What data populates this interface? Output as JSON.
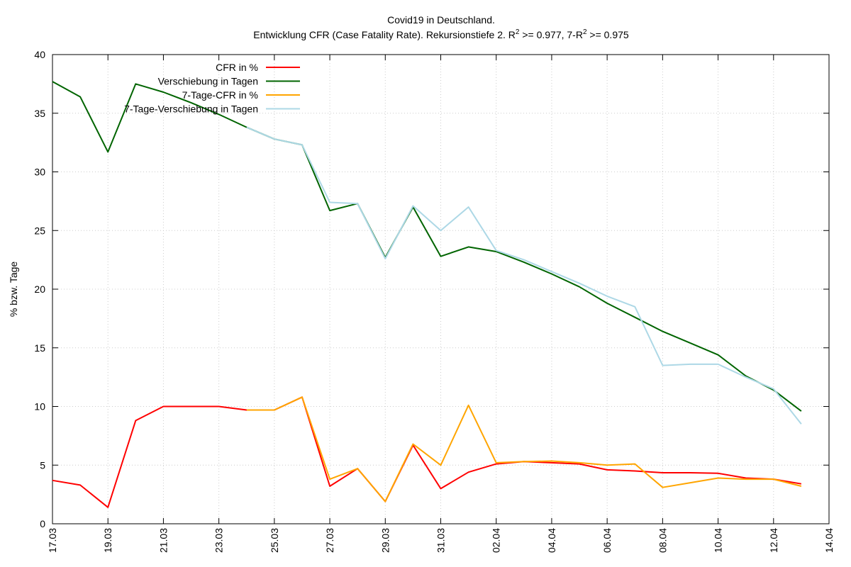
{
  "chart_data": {
    "type": "line",
    "title_line1": "Covid19 in Deutschland.",
    "title_line2_prefix": "Entwicklung CFR (Case Fatality Rate). Rekursionstiefe 2. R",
    "title_sup1": "2",
    "title_line2_mid": " >= 0.977, 7-R",
    "title_sup2": "2",
    "title_line2_suffix": " >= 0.975",
    "ylabel": "% bzw. Tage",
    "xlabel": "",
    "ylim": [
      0,
      40
    ],
    "yticks": [
      0,
      5,
      10,
      15,
      20,
      25,
      30,
      35,
      40
    ],
    "x_dates": [
      "17.03",
      "18.03",
      "19.03",
      "20.03",
      "21.03",
      "22.03",
      "23.03",
      "24.03",
      "25.03",
      "26.03",
      "27.03",
      "28.03",
      "29.03",
      "30.03",
      "31.03",
      "01.04",
      "02.04",
      "03.04",
      "04.04",
      "05.04",
      "06.04",
      "07.04",
      "08.04",
      "09.04",
      "10.04",
      "11.04",
      "12.04",
      "13.04",
      "14.04"
    ],
    "xtick_labels": [
      "17.03",
      "19.03",
      "21.03",
      "23.03",
      "25.03",
      "27.03",
      "29.03",
      "31.03",
      "02.04",
      "04.04",
      "06.04",
      "08.04",
      "10.04",
      "12.04",
      "14.04"
    ],
    "grid": true,
    "legend_position": "top-left",
    "series": [
      {
        "name": "CFR in %",
        "color": "#ff0000",
        "x": [
          "17.03",
          "18.03",
          "19.03",
          "20.03",
          "21.03",
          "22.03",
          "23.03",
          "24.03",
          "25.03",
          "26.03",
          "27.03",
          "28.03",
          "29.03",
          "30.03",
          "31.03",
          "01.04",
          "02.04",
          "03.04",
          "04.04",
          "05.04",
          "06.04",
          "07.04",
          "08.04",
          "09.04",
          "10.04",
          "11.04",
          "12.04",
          "13.04"
        ],
        "values": [
          3.7,
          3.3,
          1.4,
          8.8,
          10.0,
          10.0,
          10.0,
          9.7,
          9.7,
          10.8,
          3.2,
          4.7,
          1.9,
          6.7,
          3.0,
          4.4,
          5.1,
          5.3,
          5.2,
          5.1,
          4.6,
          4.5,
          4.35,
          4.35,
          4.3,
          3.9,
          3.8,
          3.4
        ]
      },
      {
        "name": "Verschiebung in Tagen",
        "color": "#006400",
        "x": [
          "17.03",
          "18.03",
          "19.03",
          "20.03",
          "21.03",
          "22.03",
          "23.03",
          "24.03",
          "25.03",
          "26.03",
          "27.03",
          "28.03",
          "29.03",
          "30.03",
          "31.03",
          "01.04",
          "02.04",
          "03.04",
          "04.04",
          "05.04",
          "06.04",
          "07.04",
          "08.04",
          "09.04",
          "10.04",
          "11.04",
          "12.04",
          "13.04"
        ],
        "values": [
          37.7,
          36.4,
          31.7,
          37.5,
          36.8,
          35.9,
          34.9,
          33.8,
          32.8,
          32.3,
          26.7,
          27.3,
          22.7,
          27.0,
          22.8,
          23.6,
          23.2,
          22.3,
          21.3,
          20.2,
          18.8,
          17.6,
          16.4,
          15.4,
          14.4,
          12.6,
          11.4,
          9.6
        ]
      },
      {
        "name": "7-Tage-CFR in %",
        "color": "#ffa500",
        "x": [
          "24.03",
          "25.03",
          "26.03",
          "27.03",
          "28.03",
          "29.03",
          "30.03",
          "31.03",
          "01.04",
          "02.04",
          "03.04",
          "04.04",
          "05.04",
          "06.04",
          "07.04",
          "08.04",
          "09.04",
          "10.04",
          "11.04",
          "12.04",
          "13.04"
        ],
        "values": [
          9.7,
          9.7,
          10.8,
          3.8,
          4.7,
          1.9,
          6.8,
          5.0,
          10.1,
          5.2,
          5.3,
          5.35,
          5.2,
          5.0,
          5.1,
          3.1,
          3.5,
          3.9,
          3.8,
          3.8,
          3.2
        ]
      },
      {
        "name": "7-Tage-Verschiebung in Tagen",
        "color": "#add8e6",
        "x": [
          "24.03",
          "25.03",
          "26.03",
          "27.03",
          "28.03",
          "29.03",
          "30.03",
          "31.03",
          "01.04",
          "02.04",
          "03.04",
          "04.04",
          "05.04",
          "06.04",
          "07.04",
          "08.04",
          "09.04",
          "10.04",
          "11.04",
          "12.04",
          "13.04"
        ],
        "values": [
          33.8,
          32.8,
          32.3,
          27.4,
          27.3,
          22.6,
          27.1,
          25.0,
          27.0,
          23.3,
          22.5,
          21.5,
          20.5,
          19.4,
          18.5,
          13.5,
          13.6,
          13.6,
          12.5,
          11.5,
          8.5
        ]
      }
    ]
  }
}
